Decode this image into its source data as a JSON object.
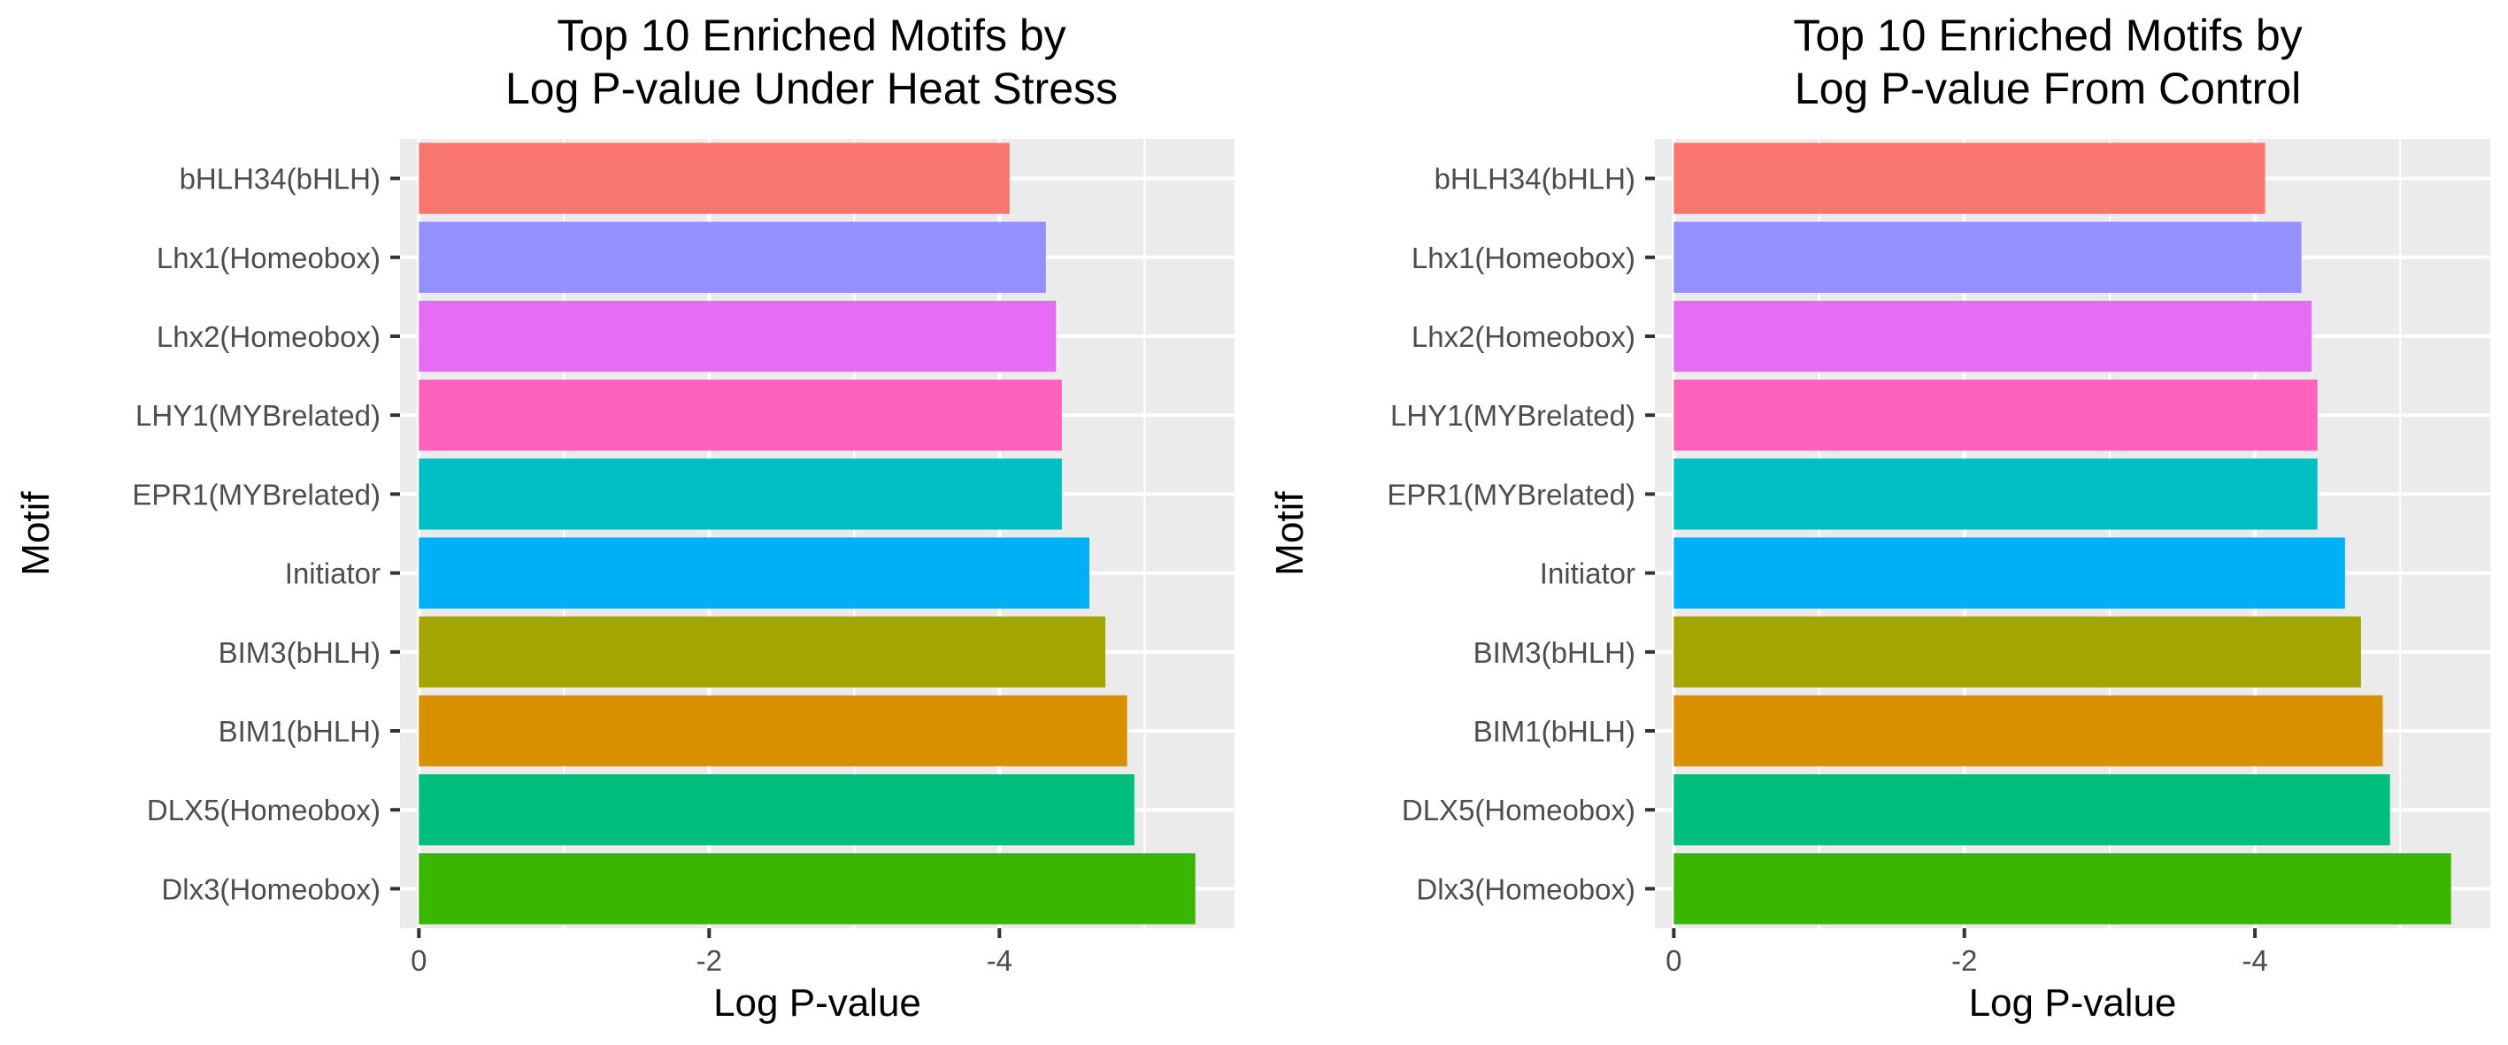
{
  "chart_data": [
    {
      "type": "bar",
      "orientation": "horizontal",
      "title": "Top 10 Enriched Motifs by\nLog P-value Under Heat Stress",
      "xlabel": "Log P-value",
      "ylabel": "Motif",
      "categories": [
        "bHLH34(bHLH)",
        "Lhx1(Homeobox)",
        "Lhx2(Homeobox)",
        "LHY1(MYBrelated)",
        "EPR1(MYBrelated)",
        "Initiator",
        "BIM3(bHLH)",
        "BIM1(bHLH)",
        "DLX5(Homeobox)",
        "Dlx3(Homeobox)"
      ],
      "values": [
        -4.07,
        -4.32,
        -4.39,
        -4.43,
        -4.43,
        -4.62,
        -4.73,
        -4.88,
        -4.93,
        -5.35
      ],
      "colors": [
        "#F8766D",
        "#9590FF",
        "#E76BF3",
        "#FF62BC",
        "#00BFC4",
        "#00B0F6",
        "#A3A500",
        "#D89000",
        "#00BF7D",
        "#39B600"
      ],
      "xticks": [
        0,
        -2,
        -4
      ],
      "xtick_labels": [
        "0",
        "-2",
        "-4"
      ],
      "xlim": [
        0.13,
        -5.62
      ],
      "grid": true,
      "legend": "none"
    },
    {
      "type": "bar",
      "orientation": "horizontal",
      "title": "Top 10 Enriched Motifs by\nLog P-value From Control",
      "xlabel": "Log P-value",
      "ylabel": "Motif",
      "categories": [
        "bHLH34(bHLH)",
        "Lhx1(Homeobox)",
        "Lhx2(Homeobox)",
        "LHY1(MYBrelated)",
        "EPR1(MYBrelated)",
        "Initiator",
        "BIM3(bHLH)",
        "BIM1(bHLH)",
        "DLX5(Homeobox)",
        "Dlx3(Homeobox)"
      ],
      "values": [
        -4.07,
        -4.32,
        -4.39,
        -4.43,
        -4.43,
        -4.62,
        -4.73,
        -4.88,
        -4.93,
        -5.35
      ],
      "colors": [
        "#F8766D",
        "#9590FF",
        "#E76BF3",
        "#FF62BC",
        "#00BFC4",
        "#00B0F6",
        "#A3A500",
        "#D89000",
        "#00BF7D",
        "#39B600"
      ],
      "xticks": [
        0,
        -2,
        -4
      ],
      "xtick_labels": [
        "0",
        "-2",
        "-4"
      ],
      "xlim": [
        0.13,
        -5.62
      ],
      "grid": true,
      "legend": "none"
    }
  ],
  "theme": {
    "panel_background": "#EBEBEB",
    "grid_color": "#FFFFFF",
    "tick_color": "#333333"
  }
}
